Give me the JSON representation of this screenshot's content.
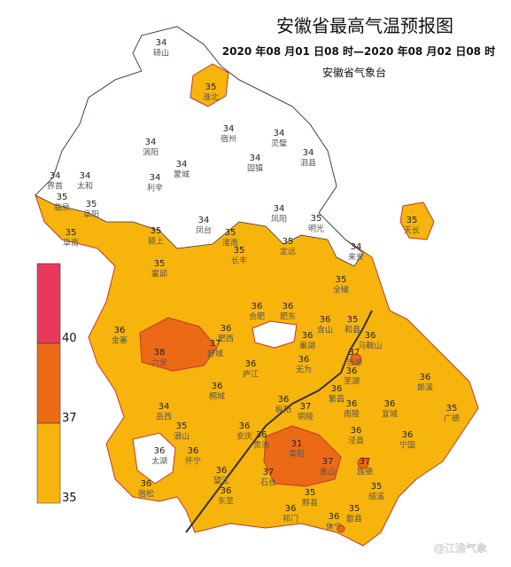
{
  "title": "安徽省最高气温预报图",
  "subtitle": "2020 年08 月01 日08 时—2020 年08 月02 日08 时",
  "source": "安徽省气象台",
  "watermark": "@江淮气象",
  "legend": {
    "colors": [
      "#e8395c",
      "#ec6a16",
      "#f7b40c"
    ],
    "labels": [
      40,
      37,
      35
    ]
  },
  "stations": [
    {
      "name": "砀山",
      "temp": 34
    },
    {
      "name": "淮北",
      "temp": 35
    },
    {
      "name": "宿州",
      "temp": 34
    },
    {
      "name": "涡阳",
      "temp": 34
    },
    {
      "name": "蒙城",
      "temp": 34
    },
    {
      "name": "灵璧",
      "temp": 34
    },
    {
      "name": "泗县",
      "temp": 34
    },
    {
      "name": "固镇",
      "temp": 34
    },
    {
      "name": "界首",
      "temp": 34
    },
    {
      "name": "太和",
      "temp": 34
    },
    {
      "name": "利辛",
      "temp": 34
    },
    {
      "name": "临泉",
      "temp": 35
    },
    {
      "name": "阜阳",
      "temp": 35
    },
    {
      "name": "阜南",
      "temp": 35
    },
    {
      "name": "颍上",
      "temp": 35
    },
    {
      "name": "凤台",
      "temp": 34
    },
    {
      "name": "淮南",
      "temp": 35
    },
    {
      "name": "凤阳",
      "temp": 34
    },
    {
      "name": "明光",
      "temp": 35
    },
    {
      "name": "定远",
      "temp": 35
    },
    {
      "name": "长丰",
      "temp": 35
    },
    {
      "name": "天长",
      "temp": 35
    },
    {
      "name": "来安",
      "temp": 34
    },
    {
      "name": "全椒",
      "temp": 35
    },
    {
      "name": "霍邱",
      "temp": 35
    },
    {
      "name": "金寨",
      "temp": 36
    },
    {
      "name": "六安",
      "temp": 38
    },
    {
      "name": "合肥",
      "temp": 36
    },
    {
      "name": "肥东",
      "temp": 36
    },
    {
      "name": "肥西",
      "temp": 36
    },
    {
      "name": "舒城",
      "temp": 37
    },
    {
      "name": "巢湖",
      "temp": 36
    },
    {
      "name": "含山",
      "temp": 36
    },
    {
      "name": "和县",
      "temp": 35
    },
    {
      "name": "马鞍山",
      "temp": 36
    },
    {
      "name": "当涂",
      "temp": 37
    },
    {
      "name": "庐江",
      "temp": 36
    },
    {
      "name": "无为",
      "temp": 36
    },
    {
      "name": "芜湖",
      "temp": 36
    },
    {
      "name": "郎溪",
      "temp": 36
    },
    {
      "name": "广德",
      "temp": 35
    },
    {
      "name": "宣城",
      "temp": 36
    },
    {
      "name": "南陵",
      "temp": 36
    },
    {
      "name": "繁昌",
      "temp": 36
    },
    {
      "name": "泾县",
      "temp": 36
    },
    {
      "name": "宁国",
      "temp": 36
    },
    {
      "name": "桐城",
      "temp": 36
    },
    {
      "name": "枞阳",
      "temp": 36
    },
    {
      "name": "铜陵",
      "temp": 37
    },
    {
      "name": "岳西",
      "temp": 34
    },
    {
      "name": "潜山",
      "temp": 35
    },
    {
      "name": "怀宁",
      "temp": 36
    },
    {
      "name": "太湖",
      "temp": 36
    },
    {
      "name": "宿松",
      "temp": 36
    },
    {
      "name": "望江",
      "temp": 36
    },
    {
      "name": "东至",
      "temp": 36
    },
    {
      "name": "安庆",
      "temp": 36
    },
    {
      "name": "贵池",
      "temp": 36
    },
    {
      "name": "石台",
      "temp": 37
    },
    {
      "name": "青阳",
      "temp": 31
    },
    {
      "name": "旌德",
      "temp": 37
    },
    {
      "name": "黄山",
      "temp": 37
    },
    {
      "name": "绩溪",
      "temp": 35
    },
    {
      "name": "黟县",
      "temp": 35
    },
    {
      "name": "祁门",
      "temp": 36
    },
    {
      "name": "歙县",
      "temp": 35
    },
    {
      "name": "休宁",
      "temp": 36
    }
  ]
}
